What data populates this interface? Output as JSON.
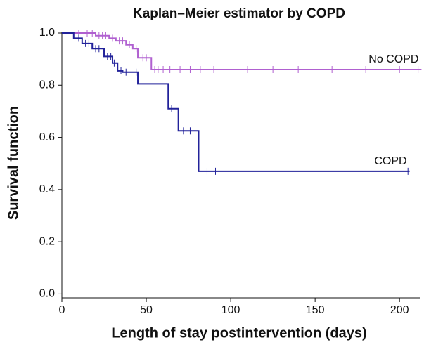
{
  "chart_data": {
    "type": "step",
    "title": "Kaplan–Meier estimator by COPD",
    "xlabel": "Length of stay postintervention (days)",
    "ylabel": "Survival function",
    "xlim": [
      0,
      212
    ],
    "ylim": [
      -0.015,
      1.0
    ],
    "xticks": [
      0,
      50,
      100,
      150,
      200
    ],
    "yticks": [
      {
        "value": 0,
        "label": "0.0"
      },
      0.2,
      0.4,
      0.6,
      0.8,
      {
        "value": 1,
        "label": "1.0"
      }
    ],
    "series": [
      {
        "name": "No COPD",
        "color": "#b060d0",
        "x": [
          0,
          20,
          28,
          32,
          38,
          42,
          45,
          53,
          213
        ],
        "values": [
          1.0,
          0.99,
          0.98,
          0.97,
          0.955,
          0.94,
          0.905,
          0.86,
          0.86
        ],
        "censor_x": [
          10,
          15,
          18,
          22,
          24,
          26,
          30,
          34,
          36,
          40,
          44,
          48,
          50,
          55,
          57,
          60,
          64,
          70,
          76,
          82,
          90,
          96,
          110,
          125,
          140,
          160,
          180,
          200,
          211
        ],
        "censor_y": [
          1.0,
          1.0,
          1.0,
          0.99,
          0.99,
          0.99,
          0.98,
          0.97,
          0.97,
          0.955,
          0.94,
          0.905,
          0.905,
          0.86,
          0.86,
          0.86,
          0.86,
          0.86,
          0.86,
          0.86,
          0.86,
          0.86,
          0.86,
          0.86,
          0.86,
          0.86,
          0.86,
          0.86,
          0.86
        ]
      },
      {
        "name": "COPD",
        "color": "#22229a",
        "x": [
          0,
          7,
          12,
          18,
          25,
          30,
          33,
          36,
          45,
          63,
          69,
          81,
          206
        ],
        "values": [
          1.0,
          0.98,
          0.96,
          0.94,
          0.91,
          0.885,
          0.855,
          0.85,
          0.805,
          0.71,
          0.625,
          0.47,
          0.47
        ],
        "censor_x": [
          10,
          14,
          16,
          20,
          22,
          27,
          29,
          31,
          35,
          38,
          44,
          65,
          72,
          76,
          86,
          91,
          205
        ],
        "censor_y": [
          0.98,
          0.96,
          0.96,
          0.94,
          0.94,
          0.91,
          0.91,
          0.885,
          0.855,
          0.85,
          0.85,
          0.71,
          0.625,
          0.625,
          0.47,
          0.47,
          0.47
        ]
      }
    ]
  }
}
